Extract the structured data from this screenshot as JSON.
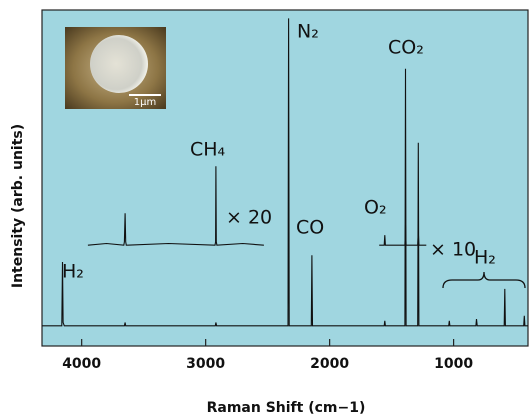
{
  "chart_data": {
    "type": "line",
    "x_label": "Raman Shift (cm−1)",
    "y_label": "Intensity (arb. units)",
    "xlim": [
      4320,
      400
    ],
    "xticks": [
      4000,
      3000,
      2000,
      1000
    ],
    "ylim": [
      0,
      100
    ],
    "series": [
      {
        "color": "#111111",
        "x": [
          4320,
          4160,
          4155,
          4150,
          4140,
          3655,
          3650,
          3645,
          2922,
          2917,
          2912,
          2336,
          2331,
          2326,
          2148,
          2143,
          2138,
          1560,
          1555,
          1550,
          1393,
          1388,
          1383,
          1290,
          1285,
          1280,
          1040,
          1035,
          1030,
          820,
          815,
          810,
          592,
          587,
          582,
          435,
          430,
          425,
          400
        ],
        "values": [
          6,
          6,
          25,
          7,
          6,
          6,
          7,
          6,
          6,
          7,
          6,
          6,
          97.5,
          6,
          6,
          27,
          6,
          6,
          7.5,
          6,
          6,
          82.5,
          6,
          6,
          60.5,
          6,
          6,
          7.5,
          6,
          6,
          8,
          6,
          6,
          17,
          6,
          6,
          9,
          6,
          6
        ]
      },
      {
        "color": "#111111",
        "x": [
          3950,
          3800,
          3660,
          3655,
          3650,
          3645,
          3640,
          3300,
          2925,
          2920,
          2917,
          2914,
          2909,
          2700,
          2530
        ],
        "values": [
          30,
          30.5,
          30,
          31,
          39.5,
          31,
          30,
          30.5,
          30,
          31,
          53.5,
          31,
          30,
          30.5,
          30
        ]
      },
      {
        "color": "#111111",
        "x": [
          1600,
          1560,
          1555,
          1550,
          1393,
          1388,
          1383,
          1290,
          1285,
          1280,
          1220
        ],
        "values": [
          30,
          30,
          33,
          30,
          30,
          36,
          30,
          30,
          34,
          30,
          30
        ]
      }
    ],
    "annotations": [
      "H₂",
      "CH₄",
      "× 20",
      "N₂",
      "CO",
      "CO₂",
      "O₂",
      "× 10",
      "H₂"
    ],
    "inset_scale": "1μm"
  }
}
